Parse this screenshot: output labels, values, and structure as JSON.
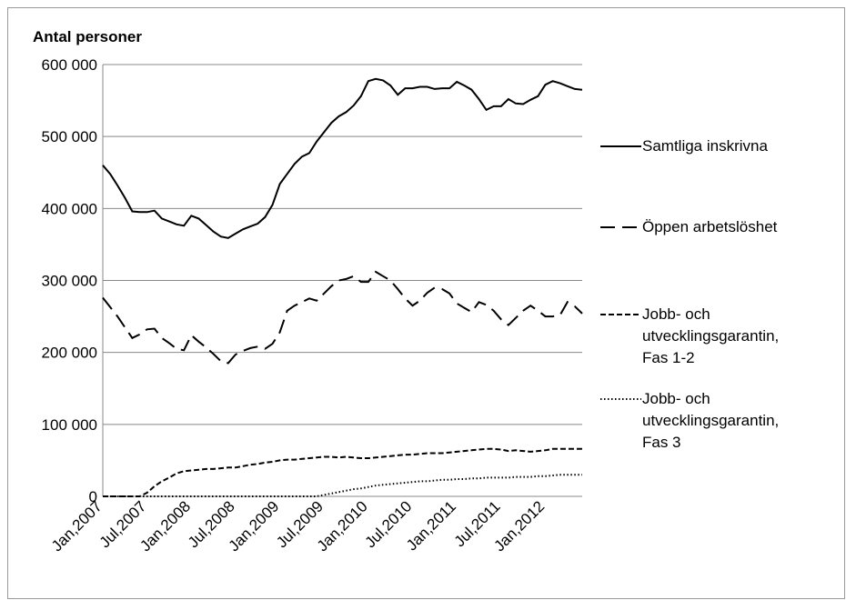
{
  "chart_data": {
    "type": "line",
    "ylabel": "Antal personer",
    "categories": [
      "Jan,2007",
      null,
      null,
      null,
      null,
      null,
      "Jul,2007",
      null,
      null,
      null,
      null,
      null,
      "Jan,2008",
      null,
      null,
      null,
      null,
      null,
      "Jul,2008",
      null,
      null,
      null,
      null,
      null,
      "Jan,2009",
      null,
      null,
      null,
      null,
      null,
      "Jul,2009",
      null,
      null,
      null,
      null,
      null,
      "Jan,2010",
      null,
      null,
      null,
      null,
      null,
      "Jul,2010",
      null,
      null,
      null,
      null,
      null,
      "Jan,2011",
      null,
      null,
      null,
      null,
      null,
      "Jul,2011",
      null,
      null,
      null,
      null,
      null,
      "Jan,2012",
      null,
      null,
      null,
      null,
      null
    ],
    "ylim": [
      0,
      600000
    ],
    "yticks": [
      0,
      {
        "value": 100000,
        "label": "100 000"
      },
      {
        "value": 200000,
        "label": "200 000"
      },
      {
        "value": 300000,
        "label": "300 000"
      },
      {
        "value": 400000,
        "label": "400 000"
      },
      {
        "value": 500000,
        "label": "500 000"
      },
      {
        "value": 600000,
        "label": "600 000"
      }
    ],
    "grid": true,
    "legend": "right",
    "series": [
      {
        "name": "Samtliga inskrivna",
        "color": "#000000",
        "style": "solid",
        "values": [
          460000,
          448000,
          432000,
          415000,
          396000,
          395000,
          395000,
          397000,
          386000,
          382000,
          378000,
          376000,
          390000,
          386000,
          377000,
          368000,
          361000,
          359000,
          365000,
          371000,
          375000,
          379000,
          388000,
          405000,
          434000,
          448000,
          462000,
          472000,
          477000,
          493000,
          506000,
          519000,
          528000,
          534000,
          543000,
          556000,
          577000,
          580000,
          578000,
          571000,
          558000,
          567000,
          567000,
          569000,
          569000,
          566000,
          567000,
          567000,
          576000,
          571000,
          565000,
          552000,
          537000,
          542000,
          542000,
          552000,
          546000,
          545000,
          551000,
          556000,
          572000,
          577000,
          574000,
          570000,
          566000,
          565000
        ]
      },
      {
        "name": "Öppen arbetslöshet",
        "color": "#000000",
        "style": "dashed",
        "values": [
          276000,
          263000,
          250000,
          235000,
          220000,
          225000,
          232000,
          233000,
          220000,
          213000,
          205000,
          203000,
          224000,
          215000,
          207000,
          198000,
          188000,
          185000,
          197000,
          202000,
          206000,
          208000,
          205000,
          212000,
          228000,
          258000,
          265000,
          270000,
          275000,
          272000,
          282000,
          292000,
          300000,
          302000,
          306000,
          298000,
          298000,
          312000,
          306000,
          300000,
          288000,
          275000,
          265000,
          272000,
          283000,
          290000,
          288000,
          282000,
          268000,
          262000,
          256000,
          270000,
          266000,
          258000,
          246000,
          238000,
          248000,
          258000,
          265000,
          258000,
          250000,
          250000,
          252000,
          270000,
          264000,
          254000
        ]
      },
      {
        "name": "Jobb- och utvecklingsgarantin, Fas 1-2",
        "color": "#000000",
        "style": "short-dashed",
        "values": [
          0,
          0,
          0,
          0,
          0,
          0,
          5000,
          14000,
          21000,
          26000,
          32000,
          35000,
          36000,
          37000,
          38000,
          38000,
          39000,
          40000,
          40000,
          42000,
          44000,
          45000,
          47000,
          48000,
          50000,
          51000,
          51000,
          52000,
          53000,
          54000,
          55000,
          55000,
          54000,
          55000,
          54000,
          53000,
          53000,
          54000,
          55000,
          56000,
          57000,
          58000,
          58000,
          59000,
          60000,
          60000,
          60000,
          61000,
          62000,
          63000,
          64000,
          65000,
          66000,
          66000,
          65000,
          63000,
          64000,
          63000,
          62000,
          63000,
          64000,
          66000,
          66000,
          66000,
          66000,
          66000
        ]
      },
      {
        "name": "Jobb- och utvecklingsgarantin, Fas 3",
        "color": "#000000",
        "style": "dotted",
        "values": [
          0,
          0,
          0,
          0,
          0,
          0,
          0,
          0,
          0,
          0,
          0,
          0,
          0,
          0,
          0,
          0,
          0,
          0,
          0,
          0,
          0,
          0,
          0,
          0,
          0,
          0,
          0,
          0,
          0,
          0,
          2000,
          4000,
          6000,
          8000,
          10000,
          11000,
          13000,
          15000,
          16000,
          17000,
          18000,
          19000,
          20000,
          21000,
          21000,
          22000,
          23000,
          23000,
          24000,
          24000,
          25000,
          25000,
          26000,
          26000,
          26000,
          26000,
          27000,
          27000,
          27000,
          28000,
          28000,
          29000,
          30000,
          30000,
          30000,
          30000
        ]
      }
    ]
  }
}
